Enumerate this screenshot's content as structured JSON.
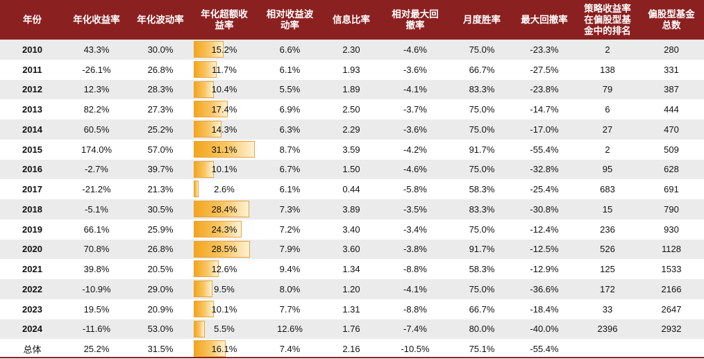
{
  "table": {
    "headers": [
      {
        "lines": [
          "年份"
        ]
      },
      {
        "lines": [
          "年化收益率"
        ]
      },
      {
        "lines": [
          "年化波动率"
        ]
      },
      {
        "lines": [
          "年化超额收",
          "益率"
        ]
      },
      {
        "lines": [
          "相对收益波",
          "动率"
        ]
      },
      {
        "lines": [
          "信息比率"
        ]
      },
      {
        "lines": [
          "相对最大回",
          "撤率"
        ]
      },
      {
        "lines": [
          "月度胜率"
        ]
      },
      {
        "lines": [
          "最大回撤率"
        ]
      },
      {
        "lines": [
          "策略收益率",
          "在偏股型基",
          "金中的排名"
        ]
      },
      {
        "lines": [
          "偏股型基金",
          "总数"
        ]
      }
    ],
    "rows": [
      {
        "year": "2010",
        "ann_return": "43.3%",
        "ann_vol": "30.0%",
        "excess": "15.2%",
        "excess_value": 15.2,
        "rel_vol": "6.6%",
        "ir": "2.30",
        "rel_mdd": "-4.6%",
        "win_rate": "75.0%",
        "mdd": "-23.3%",
        "rank": "2",
        "total_funds": "280"
      },
      {
        "year": "2011",
        "ann_return": "-26.1%",
        "ann_vol": "26.8%",
        "excess": "11.7%",
        "excess_value": 11.7,
        "rel_vol": "6.1%",
        "ir": "1.93",
        "rel_mdd": "-3.6%",
        "win_rate": "66.7%",
        "mdd": "-27.5%",
        "rank": "138",
        "total_funds": "331"
      },
      {
        "year": "2012",
        "ann_return": "12.3%",
        "ann_vol": "28.3%",
        "excess": "10.4%",
        "excess_value": 10.4,
        "rel_vol": "5.5%",
        "ir": "1.89",
        "rel_mdd": "-4.1%",
        "win_rate": "83.3%",
        "mdd": "-23.8%",
        "rank": "79",
        "total_funds": "387"
      },
      {
        "year": "2013",
        "ann_return": "82.2%",
        "ann_vol": "27.3%",
        "excess": "17.4%",
        "excess_value": 17.4,
        "rel_vol": "6.9%",
        "ir": "2.50",
        "rel_mdd": "-3.7%",
        "win_rate": "75.0%",
        "mdd": "-14.7%",
        "rank": "6",
        "total_funds": "444"
      },
      {
        "year": "2014",
        "ann_return": "60.5%",
        "ann_vol": "25.2%",
        "excess": "14.3%",
        "excess_value": 14.3,
        "rel_vol": "6.3%",
        "ir": "2.29",
        "rel_mdd": "-3.6%",
        "win_rate": "75.0%",
        "mdd": "-17.0%",
        "rank": "27",
        "total_funds": "470"
      },
      {
        "year": "2015",
        "ann_return": "174.0%",
        "ann_vol": "57.0%",
        "excess": "31.1%",
        "excess_value": 31.1,
        "rel_vol": "8.7%",
        "ir": "3.59",
        "rel_mdd": "-4.2%",
        "win_rate": "91.7%",
        "mdd": "-55.4%",
        "rank": "2",
        "total_funds": "509"
      },
      {
        "year": "2016",
        "ann_return": "-2.7%",
        "ann_vol": "39.7%",
        "excess": "10.1%",
        "excess_value": 10.1,
        "rel_vol": "6.7%",
        "ir": "1.50",
        "rel_mdd": "-4.6%",
        "win_rate": "75.0%",
        "mdd": "-32.8%",
        "rank": "95",
        "total_funds": "628"
      },
      {
        "year": "2017",
        "ann_return": "-21.2%",
        "ann_vol": "21.3%",
        "excess": "2.6%",
        "excess_value": 2.6,
        "rel_vol": "6.1%",
        "ir": "0.44",
        "rel_mdd": "-5.8%",
        "win_rate": "58.3%",
        "mdd": "-25.4%",
        "rank": "683",
        "total_funds": "691"
      },
      {
        "year": "2018",
        "ann_return": "-5.1%",
        "ann_vol": "30.5%",
        "excess": "28.4%",
        "excess_value": 28.4,
        "rel_vol": "7.3%",
        "ir": "3.89",
        "rel_mdd": "-3.5%",
        "win_rate": "83.3%",
        "mdd": "-30.8%",
        "rank": "15",
        "total_funds": "790"
      },
      {
        "year": "2019",
        "ann_return": "66.1%",
        "ann_vol": "25.9%",
        "excess": "24.3%",
        "excess_value": 24.3,
        "rel_vol": "7.2%",
        "ir": "3.40",
        "rel_mdd": "-3.4%",
        "win_rate": "75.0%",
        "mdd": "-12.4%",
        "rank": "236",
        "total_funds": "930"
      },
      {
        "year": "2020",
        "ann_return": "70.8%",
        "ann_vol": "26.8%",
        "excess": "28.5%",
        "excess_value": 28.5,
        "rel_vol": "7.9%",
        "ir": "3.60",
        "rel_mdd": "-3.8%",
        "win_rate": "91.7%",
        "mdd": "-12.5%",
        "rank": "526",
        "total_funds": "1128"
      },
      {
        "year": "2021",
        "ann_return": "39.8%",
        "ann_vol": "20.5%",
        "excess": "12.6%",
        "excess_value": 12.6,
        "rel_vol": "9.4%",
        "ir": "1.34",
        "rel_mdd": "-8.8%",
        "win_rate": "58.3%",
        "mdd": "-12.9%",
        "rank": "125",
        "total_funds": "1533"
      },
      {
        "year": "2022",
        "ann_return": "-10.9%",
        "ann_vol": "29.0%",
        "excess": "9.5%",
        "excess_value": 9.5,
        "rel_vol": "8.0%",
        "ir": "1.20",
        "rel_mdd": "-4.1%",
        "win_rate": "75.0%",
        "mdd": "-36.6%",
        "rank": "172",
        "total_funds": "2166"
      },
      {
        "year": "2023",
        "ann_return": "19.5%",
        "ann_vol": "20.9%",
        "excess": "10.1%",
        "excess_value": 10.1,
        "rel_vol": "7.7%",
        "ir": "1.31",
        "rel_mdd": "-8.8%",
        "win_rate": "66.7%",
        "mdd": "-18.4%",
        "rank": "33",
        "total_funds": "2647"
      },
      {
        "year": "2024",
        "ann_return": "-11.6%",
        "ann_vol": "53.0%",
        "excess": "5.5%",
        "excess_value": 5.5,
        "rel_vol": "12.6%",
        "ir": "1.76",
        "rel_mdd": "-7.4%",
        "win_rate": "80.0%",
        "mdd": "-40.0%",
        "rank": "2396",
        "total_funds": "2932"
      },
      {
        "year": "总体",
        "ann_return": "25.2%",
        "ann_vol": "31.5%",
        "excess": "16.1%",
        "excess_value": 16.1,
        "rel_vol": "7.4%",
        "ir": "2.16",
        "rel_mdd": "-10.5%",
        "win_rate": "75.1%",
        "mdd": "-55.4%",
        "rank": "",
        "total_funds": ""
      }
    ]
  },
  "colors": {
    "header_bg": "#8b2020",
    "header_text": "#ffffff",
    "stripe_bg": "#ebebeb",
    "bar_start": "#f3a51d",
    "bar_end": "#fff2d4"
  }
}
